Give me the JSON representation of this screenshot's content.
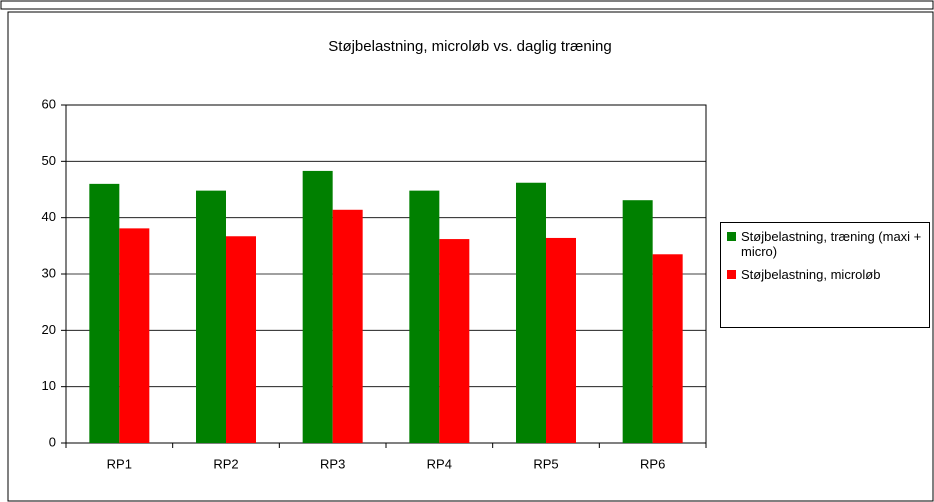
{
  "chart_data": {
    "type": "bar",
    "title": "Støjbelastning, microløb vs. daglig træning",
    "categories": [
      "RP1",
      "RP2",
      "RP3",
      "RP4",
      "RP5",
      "RP6"
    ],
    "series": [
      {
        "name": "Støjbelastning, træning (maxi + micro)",
        "color": "#008000",
        "values": [
          46,
          44.8,
          48.3,
          44.8,
          46.2,
          43.1
        ]
      },
      {
        "name": "Støjbelastning, microløb",
        "color": "#ff0000",
        "values": [
          38.1,
          36.7,
          41.4,
          36.2,
          36.4,
          33.5
        ]
      }
    ],
    "ylim": [
      0,
      60
    ],
    "yticks": [
      0,
      10,
      20,
      30,
      40,
      50,
      60
    ],
    "grid": true,
    "legend": "right"
  }
}
